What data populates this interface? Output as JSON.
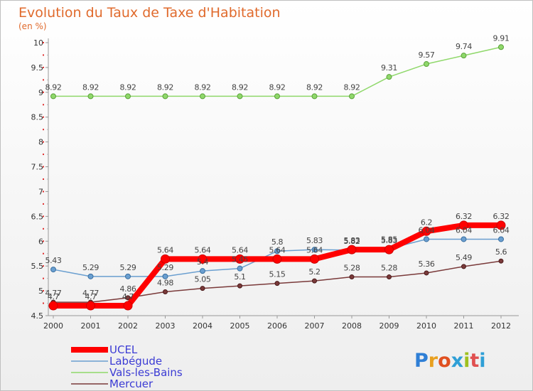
{
  "chart_data": {
    "type": "line",
    "title": "Evolution du Taux de Taxe d'Habitation",
    "subtitle": "(en %)",
    "x": [
      2000,
      2001,
      2002,
      2003,
      2004,
      2005,
      2006,
      2007,
      2008,
      2009,
      2010,
      2011,
      2012
    ],
    "ylim": [
      4.5,
      10
    ],
    "yticks": [
      4.5,
      5,
      5.5,
      6,
      6.5,
      7,
      7.5,
      8,
      8.5,
      9,
      9.5,
      10
    ],
    "ytick_labels": [
      "4.5",
      "5",
      "5.5",
      "6",
      "6.5",
      "7",
      "7.5",
      "8",
      "8.5",
      "9",
      "9.5",
      "10"
    ],
    "grid": false,
    "legend_position": "bottom-left",
    "series": [
      {
        "name": "UCEL",
        "color": "#ff0000",
        "values": [
          4.7,
          4.7,
          4.7,
          5.64,
          5.64,
          5.64,
          5.64,
          5.64,
          5.83,
          5.83,
          6.2,
          6.32,
          6.32
        ],
        "labels": [
          "4.7",
          "4.7",
          "4.7",
          "5.64",
          "5.64",
          "5.64",
          "5.64",
          "5.64",
          "5.83",
          "5.83",
          "6.2",
          "6.32",
          "6.32"
        ]
      },
      {
        "name": "Labégude",
        "color": "#6a9fd0",
        "values": [
          5.43,
          5.29,
          5.29,
          5.29,
          5.4,
          5.45,
          5.8,
          5.83,
          5.82,
          5.85,
          6.04,
          6.04,
          6.04
        ],
        "labels": [
          "5.43",
          "5.29",
          "5.29",
          "5.29",
          "5.4",
          "5.45",
          "5.8",
          "5.83",
          "5.82",
          "5.85",
          "6.04",
          "6.04",
          "6.04"
        ]
      },
      {
        "name": "Vals-les-Bains",
        "color": "#8fd86a",
        "values": [
          8.92,
          8.92,
          8.92,
          8.92,
          8.92,
          8.92,
          8.92,
          8.92,
          8.92,
          9.31,
          9.57,
          9.74,
          9.91
        ],
        "labels": [
          "8.92",
          "8.92",
          "8.92",
          "8.92",
          "8.92",
          "8.92",
          "8.92",
          "8.92",
          "8.92",
          "9.31",
          "9.57",
          "9.74",
          "9.91"
        ]
      },
      {
        "name": "Mercuer",
        "color": "#7a3a3a",
        "values": [
          4.77,
          4.77,
          4.86,
          4.98,
          5.05,
          5.1,
          5.15,
          5.2,
          5.28,
          5.28,
          5.36,
          5.49,
          5.6
        ],
        "labels": [
          "4.77",
          "4.77",
          "4.86",
          "4.98",
          "5.05",
          "5.1",
          "5.15",
          "5.2",
          "5.28",
          "5.28",
          "5.36",
          "5.49",
          "5.6"
        ]
      }
    ]
  },
  "branding": {
    "logo_letters": [
      "P",
      "r",
      "o",
      "x",
      "i",
      "t",
      "i"
    ],
    "logo_colors": [
      "#2f7fd6",
      "#e8a020",
      "#e05020",
      "#2f9fd6",
      "#9fc020",
      "#e05050",
      "#2f9fd6"
    ]
  }
}
